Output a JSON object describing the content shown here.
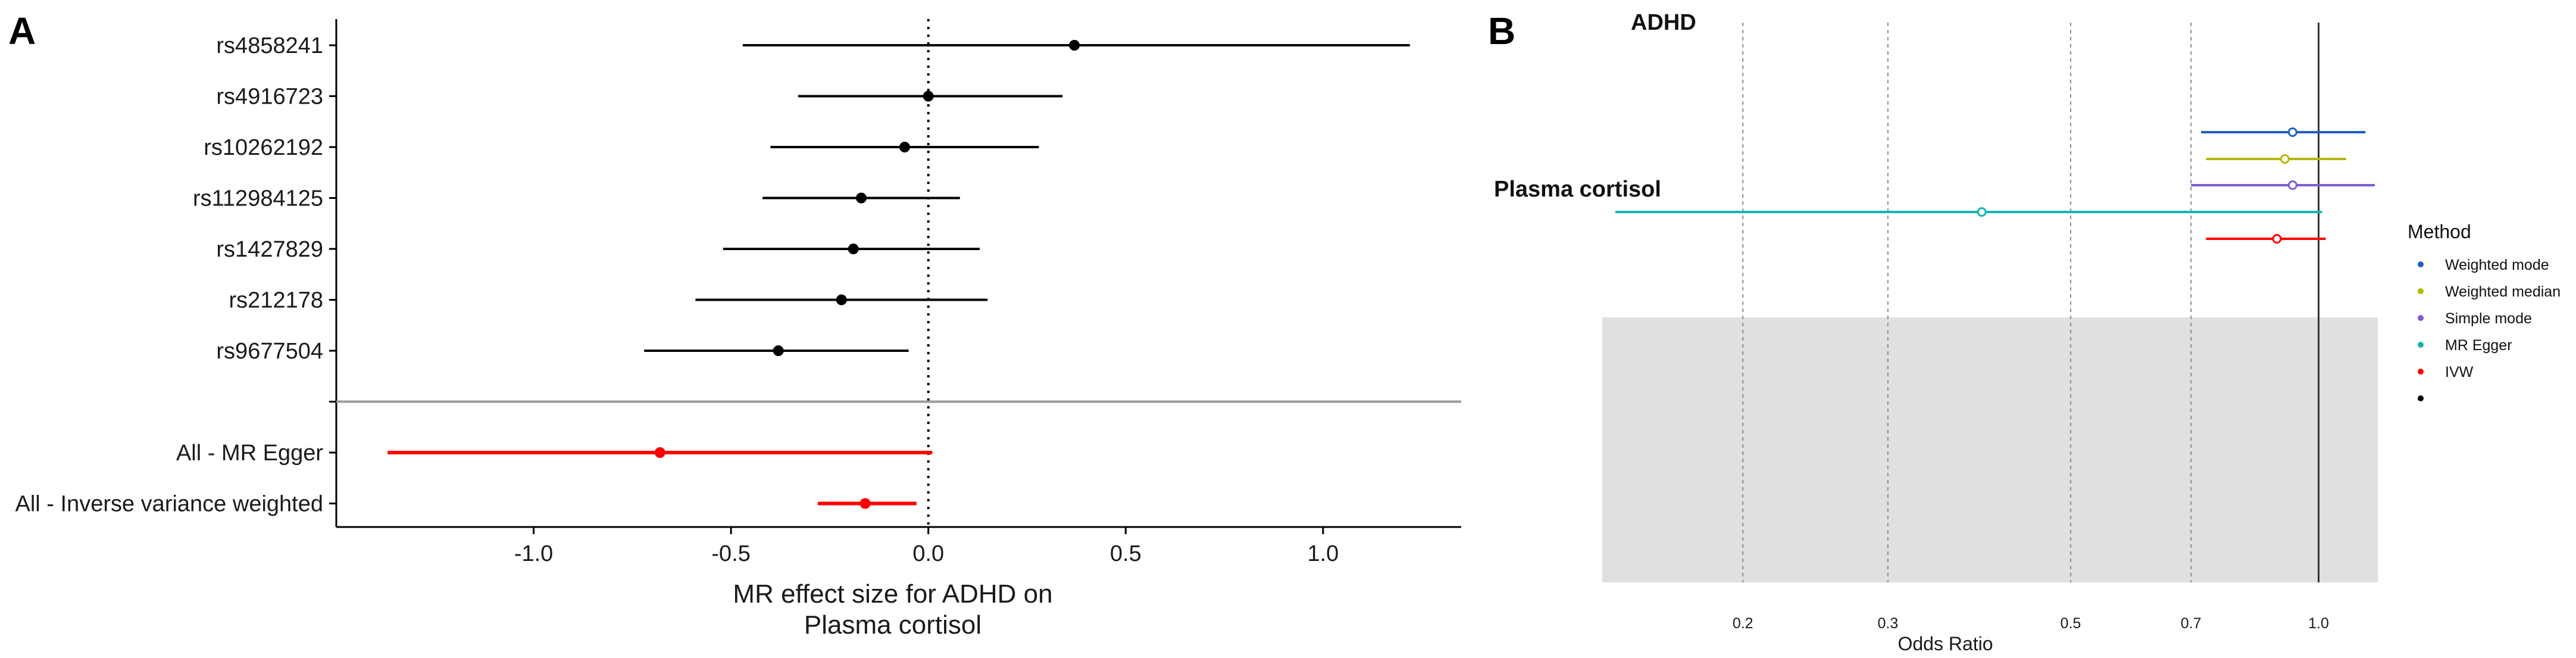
{
  "chart_data": [
    {
      "panel": "A",
      "type": "forest",
      "xlabel": "MR effect size for ADHD on\nPlasma cortisol",
      "xlim": [
        -1.5,
        1.35
      ],
      "xticks": [
        -1.0,
        -0.5,
        0.0,
        0.5,
        1.0
      ],
      "xtick_labels": [
        "-1.0",
        "-0.5",
        "0.0",
        "0.5",
        "1.0"
      ],
      "reference_line": 0,
      "rows": [
        {
          "label": "rs4858241",
          "estimate": 0.37,
          "lower": -0.47,
          "upper": 1.22,
          "color": "#000000"
        },
        {
          "label": "rs4916723",
          "estimate": 0.0,
          "lower": -0.33,
          "upper": 0.34,
          "color": "#000000"
        },
        {
          "label": "rs10262192",
          "estimate": -0.06,
          "lower": -0.4,
          "upper": 0.28,
          "color": "#000000"
        },
        {
          "label": "rs112984125",
          "estimate": -0.17,
          "lower": -0.42,
          "upper": 0.08,
          "color": "#000000"
        },
        {
          "label": "rs1427829",
          "estimate": -0.19,
          "lower": -0.52,
          "upper": 0.13,
          "color": "#000000"
        },
        {
          "label": "rs212178",
          "estimate": -0.22,
          "lower": -0.59,
          "upper": 0.15,
          "color": "#000000"
        },
        {
          "label": "rs9677504",
          "estimate": -0.38,
          "lower": -0.72,
          "upper": -0.05,
          "color": "#000000"
        },
        {
          "label": "",
          "separator": true
        },
        {
          "label": "All - MR Egger",
          "estimate": -0.68,
          "lower": -1.37,
          "upper": 0.01,
          "color": "#ff0000"
        },
        {
          "label": "All - Inverse variance weighted",
          "estimate": -0.16,
          "lower": -0.28,
          "upper": -0.03,
          "color": "#ff0000"
        }
      ]
    },
    {
      "panel": "B",
      "type": "forest",
      "xlabel": "Odds Ratio",
      "scale": "log",
      "xlim": [
        0.135,
        1.18
      ],
      "xticks": [
        0.2,
        0.3,
        0.5,
        0.7,
        1.0
      ],
      "xtick_labels": [
        "0.2",
        "0.3",
        "0.5",
        "0.7",
        "1.0"
      ],
      "reference_line": 1.0,
      "groups": [
        {
          "label": "ADHD"
        },
        {
          "label": "Plasma cortisol"
        }
      ],
      "rows": [
        {
          "method": "Weighted mode",
          "or": 0.93,
          "lower": 0.72,
          "upper": 1.14,
          "color": "#1f5fbf"
        },
        {
          "method": "Weighted median",
          "or": 0.91,
          "lower": 0.73,
          "upper": 1.08,
          "color": "#b5b800"
        },
        {
          "method": "Simple mode",
          "or": 0.93,
          "lower": 0.7,
          "upper": 1.17,
          "color": "#7f5bd6"
        },
        {
          "method": "MR Egger",
          "or": 0.39,
          "lower": 0.14,
          "upper": 1.01,
          "color": "#17b3b3"
        },
        {
          "method": "IVW",
          "or": 0.89,
          "lower": 0.73,
          "upper": 1.02,
          "color": "#ff0000"
        }
      ],
      "legend": {
        "title": "Method",
        "position": "right",
        "entries": [
          {
            "label": "Weighted mode",
            "color": "#1f5fbf"
          },
          {
            "label": "Weighted median",
            "color": "#b5b800"
          },
          {
            "label": "Simple mode",
            "color": "#7f5bd6"
          },
          {
            "label": "MR Egger",
            "color": "#17b3b3"
          },
          {
            "label": "IVW",
            "color": "#ff0000"
          },
          {
            "label": "",
            "color": "#000000"
          }
        ]
      },
      "shaded_band": true
    }
  ],
  "panels": {
    "a_letter": "A",
    "b_letter": "B"
  }
}
